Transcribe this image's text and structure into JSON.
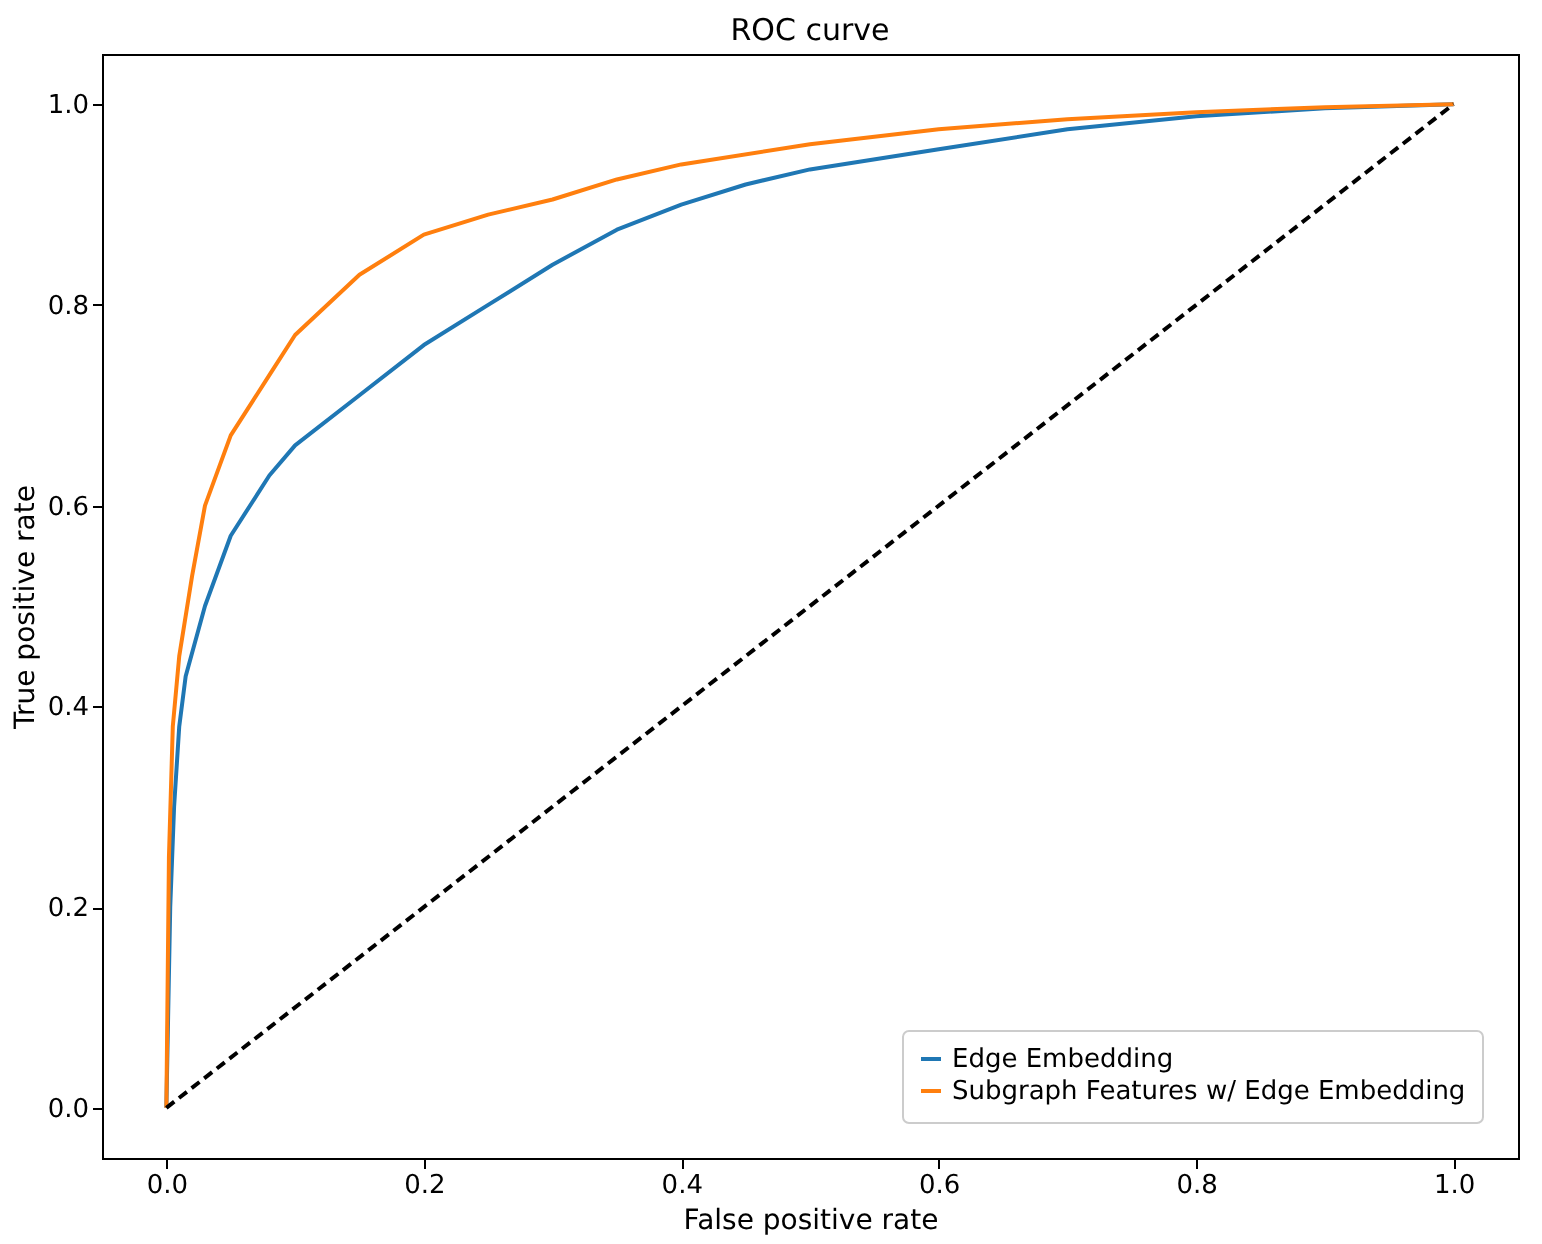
{
  "chart_data": {
    "type": "line",
    "title": "ROC curve",
    "xlabel": "False positive rate",
    "ylabel": "True positive rate",
    "xlim": [
      -0.05,
      1.05
    ],
    "ylim": [
      -0.05,
      1.05
    ],
    "xticks": [
      {
        "value": 0,
        "label": "0.0"
      },
      {
        "value": 0.2,
        "label": "0.2"
      },
      {
        "value": 0.4,
        "label": "0.4"
      },
      {
        "value": 0.6,
        "label": "0.6"
      },
      {
        "value": 0.8,
        "label": "0.8"
      },
      {
        "value": 1,
        "label": "1.0"
      }
    ],
    "yticks": [
      {
        "value": 0,
        "label": "0.0"
      },
      {
        "value": 0.2,
        "label": "0.2"
      },
      {
        "value": 0.4,
        "label": "0.4"
      },
      {
        "value": 0.6,
        "label": "0.6"
      },
      {
        "value": 0.8,
        "label": "0.8"
      },
      {
        "value": 1,
        "label": "1.0"
      }
    ],
    "grid": false,
    "legend": "bottom right",
    "series": [
      {
        "name": "Edge Embedding",
        "color": "#1f77b4",
        "line_style": "solid",
        "x": [
          0,
          0.003,
          0.006,
          0.01,
          0.015,
          0.03,
          0.05,
          0.08,
          0.1,
          0.15,
          0.2,
          0.25,
          0.3,
          0.35,
          0.4,
          0.45,
          0.5,
          0.6,
          0.7,
          0.8,
          0.9,
          1
        ],
        "values": [
          0,
          0.2,
          0.3,
          0.38,
          0.43,
          0.5,
          0.57,
          0.63,
          0.66,
          0.71,
          0.76,
          0.8,
          0.84,
          0.875,
          0.9,
          0.92,
          0.935,
          0.955,
          0.975,
          0.988,
          0.996,
          1
        ]
      },
      {
        "name": "Subgraph Features w/ Edge Embedding",
        "color": "#ff7f0e",
        "line_style": "solid",
        "x": [
          0,
          0.002,
          0.005,
          0.01,
          0.02,
          0.03,
          0.05,
          0.08,
          0.1,
          0.15,
          0.2,
          0.25,
          0.3,
          0.35,
          0.4,
          0.5,
          0.6,
          0.7,
          0.8,
          0.9,
          1
        ],
        "values": [
          0,
          0.25,
          0.38,
          0.45,
          0.53,
          0.6,
          0.67,
          0.73,
          0.77,
          0.83,
          0.87,
          0.89,
          0.905,
          0.925,
          0.94,
          0.96,
          0.975,
          0.985,
          0.992,
          0.997,
          1
        ]
      },
      {
        "color": "#000000",
        "line_style": "dashed",
        "x": [
          0,
          1
        ],
        "values": [
          0,
          1
        ]
      }
    ]
  }
}
